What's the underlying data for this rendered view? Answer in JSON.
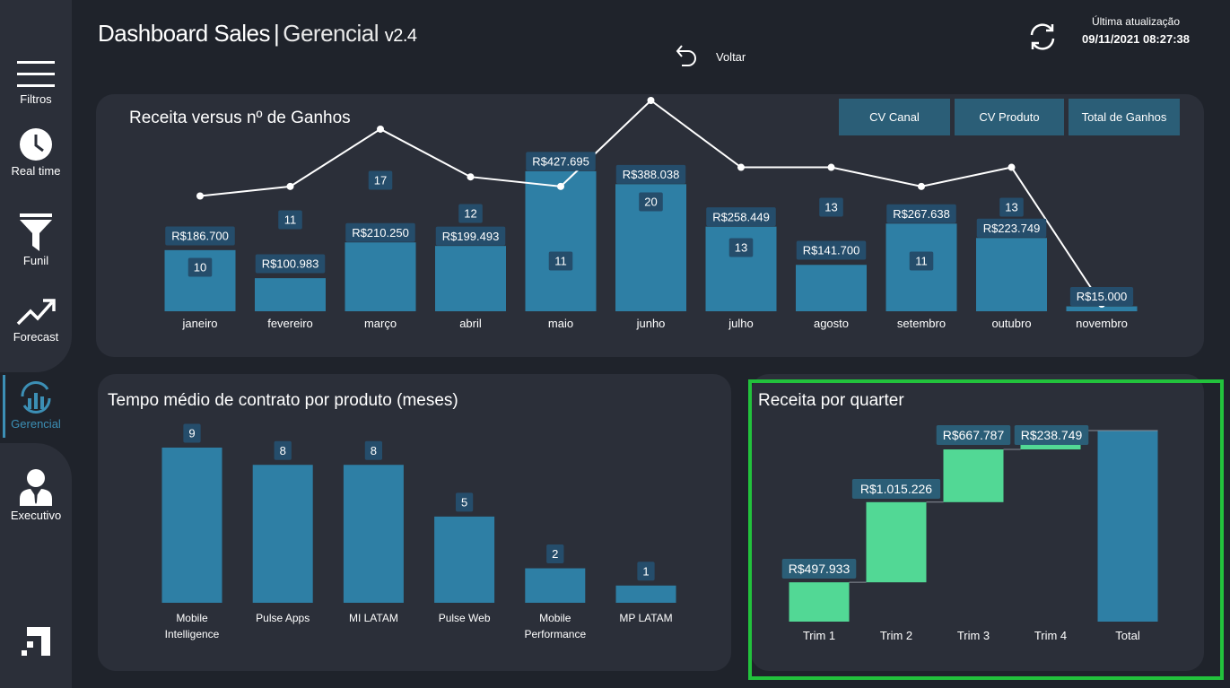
{
  "header": {
    "title_main": "Dashboard Sales",
    "title_sep": "|",
    "title_sub": "Gerencial",
    "version": "v2.4",
    "back_label": "Voltar",
    "update_label": "Última atualização",
    "update_value": "09/11/2021 08:27:38"
  },
  "sidebar": {
    "items": [
      {
        "label": "Filtros",
        "icon": "hamburger-icon"
      },
      {
        "label": "Real time",
        "icon": "clock-icon"
      },
      {
        "label": "Funil",
        "icon": "funnel-icon"
      },
      {
        "label": "Forecast",
        "icon": "trend-icon"
      },
      {
        "label": "Gerencial",
        "icon": "chart-refresh-icon"
      },
      {
        "label": "Executivo",
        "icon": "executive-icon"
      }
    ],
    "logo_icon": "brand-logo-icon"
  },
  "colors": {
    "background": "#1f232b",
    "panel": "#2b2f39",
    "bar": "#2e7fa5",
    "label_box": "#254d6b",
    "waterfall_up": "#52d895",
    "accent": "#3c8fb5",
    "highlight": "#22c23c"
  },
  "buttons": {
    "cv_canal": "CV Canal",
    "cv_produto": "CV Produto",
    "total_ganhos": "Total de Ganhos"
  },
  "chart_data": [
    {
      "type": "bar",
      "title": "Receita versus nº de Ganhos",
      "categories": [
        "janeiro",
        "fevereiro",
        "março",
        "abril",
        "maio",
        "junho",
        "julho",
        "agosto",
        "setembro",
        "outubro",
        "novembro"
      ],
      "series": [
        {
          "values": [
            186700,
            100983,
            210250,
            199493,
            427695,
            388038,
            258449,
            141700,
            267638,
            223749,
            15000
          ],
          "labels": [
            "R$186.700",
            "R$100.983",
            "R$210.250",
            "R$199.493",
            "R$427.695",
            "R$388.038",
            "R$258.449",
            "R$141.700",
            "R$267.638",
            "R$223.749",
            "R$15.000"
          ]
        },
        {
          "type": "line",
          "values": [
            10,
            11,
            17,
            12,
            11,
            20,
            13,
            13,
            11,
            13,
            null
          ],
          "labels": [
            "10",
            "11",
            "17",
            "12",
            "11",
            "20",
            "13",
            "13",
            "11",
            "13",
            ""
          ]
        }
      ]
    },
    {
      "type": "bar",
      "title": "Tempo médio de contrato por produto (meses)",
      "categories": [
        [
          "Mobile",
          "Intelligence"
        ],
        [
          "Pulse Apps"
        ],
        [
          "MI LATAM"
        ],
        [
          "Pulse Web"
        ],
        [
          "Mobile",
          "Performance"
        ],
        [
          "MP LATAM"
        ]
      ],
      "values": [
        9,
        8,
        8,
        5,
        2,
        1
      ],
      "labels": [
        "9",
        "8",
        "8",
        "5",
        "2",
        "1"
      ]
    },
    {
      "type": "bar",
      "title": "Receita por quarter",
      "categories": [
        "Trim 1",
        "Trim 2",
        "Trim 3",
        "Trim 4",
        "Total"
      ],
      "values": [
        497933,
        1015226,
        667787,
        238749,
        2419695
      ],
      "labels": [
        "R$497.933",
        "R$1.015.226",
        "R$667.787",
        "R$238.749",
        ""
      ]
    }
  ]
}
